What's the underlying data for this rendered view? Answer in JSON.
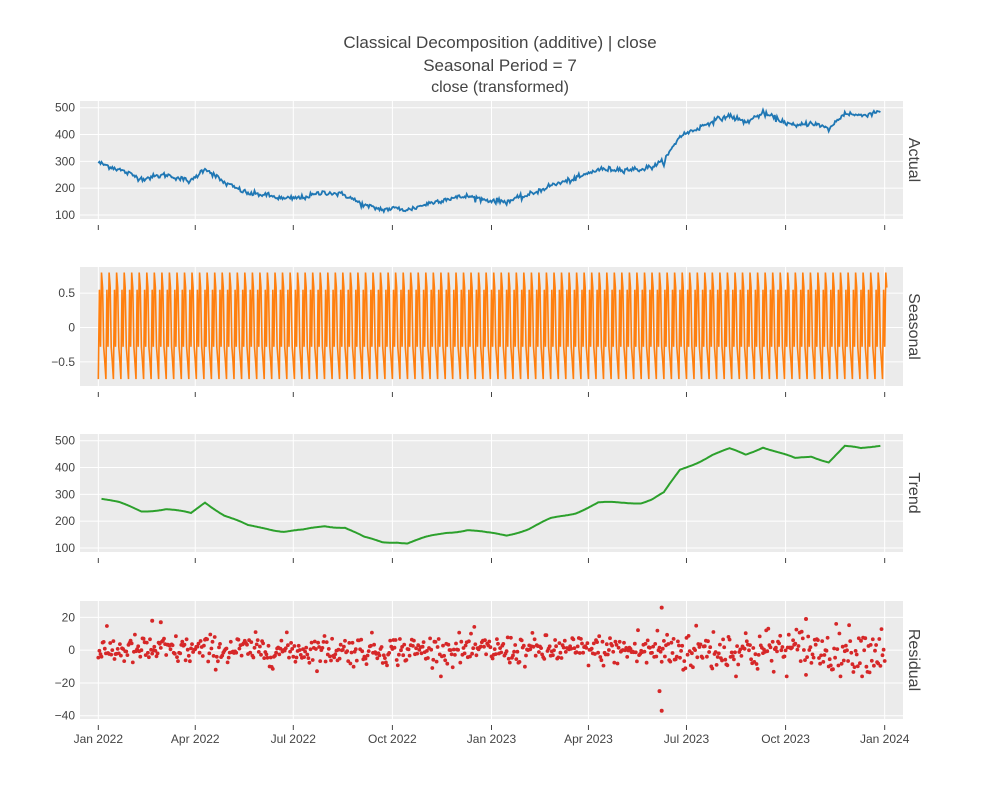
{
  "figure": {
    "title": "Classical Decomposition (additive) | close",
    "subtitle": "Seasonal Period = 7",
    "subsubtitle": "close (transformed)"
  },
  "colors": {
    "actual": "#1f77b4",
    "seasonal": "#ff7f0e",
    "trend": "#2ca02c",
    "residual": "#d62728",
    "panel_bg": "#ebebeb",
    "grid": "#ffffff"
  },
  "chart_data": [
    {
      "type": "line",
      "panel_label": "Actual",
      "series": [
        {
          "name": "close",
          "x": [
            "2022-01-01",
            "2022-01-20",
            "2022-02-10",
            "2022-03-05",
            "2022-03-28",
            "2022-04-10",
            "2022-04-28",
            "2022-05-20",
            "2022-06-05",
            "2022-06-22",
            "2022-07-10",
            "2022-07-30",
            "2022-08-18",
            "2022-09-05",
            "2022-09-22",
            "2022-10-05",
            "2022-10-15",
            "2022-11-01",
            "2022-11-20",
            "2022-12-10",
            "2022-12-28",
            "2023-01-15",
            "2023-02-05",
            "2023-02-25",
            "2023-03-20",
            "2023-04-10",
            "2023-05-01",
            "2023-05-20",
            "2023-05-30",
            "2023-06-10",
            "2023-06-25",
            "2023-07-10",
            "2023-07-25",
            "2023-08-10",
            "2023-08-25",
            "2023-09-10",
            "2023-09-25",
            "2023-10-10",
            "2023-10-25",
            "2023-11-10",
            "2023-11-25",
            "2023-12-10",
            "2023-12-28"
          ],
          "values": [
            295,
            270,
            235,
            250,
            225,
            275,
            220,
            180,
            175,
            160,
            165,
            185,
            175,
            135,
            120,
            125,
            118,
            140,
            160,
            170,
            155,
            150,
            175,
            210,
            235,
            270,
            270,
            270,
            280,
            300,
            395,
            420,
            450,
            470,
            445,
            480,
            455,
            430,
            445,
            420,
            480,
            470,
            488
          ]
        }
      ],
      "yticks": [
        100,
        200,
        300,
        400,
        500
      ],
      "ylim": [
        85,
        525
      ]
    },
    {
      "type": "line",
      "panel_label": "Seasonal",
      "period": 7,
      "pattern": [
        -0.75,
        0.55,
        -0.28,
        0.8,
        0.58,
        -0.28,
        -0.5
      ],
      "x_range": [
        "2022-01-01",
        "2024-01-03"
      ],
      "yticks": [
        -0.5,
        0,
        0.5
      ],
      "ytick_labels": [
        "−0.5",
        "0",
        "0.5"
      ],
      "ylim": [
        -0.85,
        0.88
      ]
    },
    {
      "type": "line",
      "panel_label": "Trend",
      "series": [
        {
          "name": "trend",
          "x": [
            "2022-01-04",
            "2022-01-20",
            "2022-02-10",
            "2022-03-05",
            "2022-03-28",
            "2022-04-10",
            "2022-04-28",
            "2022-05-20",
            "2022-06-05",
            "2022-06-22",
            "2022-07-10",
            "2022-07-30",
            "2022-08-18",
            "2022-09-05",
            "2022-09-22",
            "2022-10-05",
            "2022-10-15",
            "2022-11-01",
            "2022-11-20",
            "2022-12-10",
            "2022-12-28",
            "2023-01-15",
            "2023-02-05",
            "2023-02-25",
            "2023-03-20",
            "2023-04-10",
            "2023-05-01",
            "2023-05-20",
            "2023-05-30",
            "2023-06-10",
            "2023-06-25",
            "2023-07-10",
            "2023-07-25",
            "2023-08-10",
            "2023-08-25",
            "2023-09-10",
            "2023-09-25",
            "2023-10-10",
            "2023-10-25",
            "2023-11-10",
            "2023-11-25",
            "2023-12-10",
            "2023-12-28"
          ],
          "values": [
            285,
            268,
            238,
            245,
            228,
            272,
            222,
            182,
            175,
            162,
            165,
            183,
            177,
            138,
            122,
            124,
            118,
            138,
            158,
            168,
            155,
            148,
            172,
            208,
            232,
            268,
            268,
            270,
            282,
            305,
            390,
            418,
            448,
            468,
            448,
            478,
            455,
            432,
            442,
            422,
            478,
            470,
            485
          ]
        }
      ],
      "yticks": [
        100,
        200,
        300,
        400,
        500
      ],
      "ylim": [
        85,
        525
      ]
    },
    {
      "type": "scatter",
      "panel_label": "Residual",
      "description_of_values": "daily residuals, mostly between -15 and 15, with outliers near 2023-06",
      "outliers": [
        {
          "x": "2022-02-20",
          "y": 18
        },
        {
          "x": "2022-02-28",
          "y": 17
        },
        {
          "x": "2023-06-08",
          "y": 26
        },
        {
          "x": "2023-06-06",
          "y": -25
        },
        {
          "x": "2023-06-08",
          "y": -37
        },
        {
          "x": "2023-10-20",
          "y": 19
        }
      ],
      "yticks": [
        -40,
        -20,
        0,
        20
      ],
      "ytick_labels": [
        "−40",
        "−20",
        "0",
        "20"
      ],
      "ylim": [
        -42,
        30
      ]
    }
  ],
  "xaxis": {
    "ticks": [
      "2022-01-01",
      "2022-04-01",
      "2022-07-01",
      "2022-10-01",
      "2023-01-01",
      "2023-04-01",
      "2023-07-01",
      "2023-10-01",
      "2024-01-01"
    ],
    "tick_labels": [
      "Jan 2022",
      "Apr 2022",
      "Jul 2022",
      "Oct 2022",
      "Jan 2023",
      "Apr 2023",
      "Jul 2023",
      "Oct 2023",
      "Jan 2024"
    ],
    "range": [
      "2021-12-15",
      "2024-01-18"
    ]
  }
}
